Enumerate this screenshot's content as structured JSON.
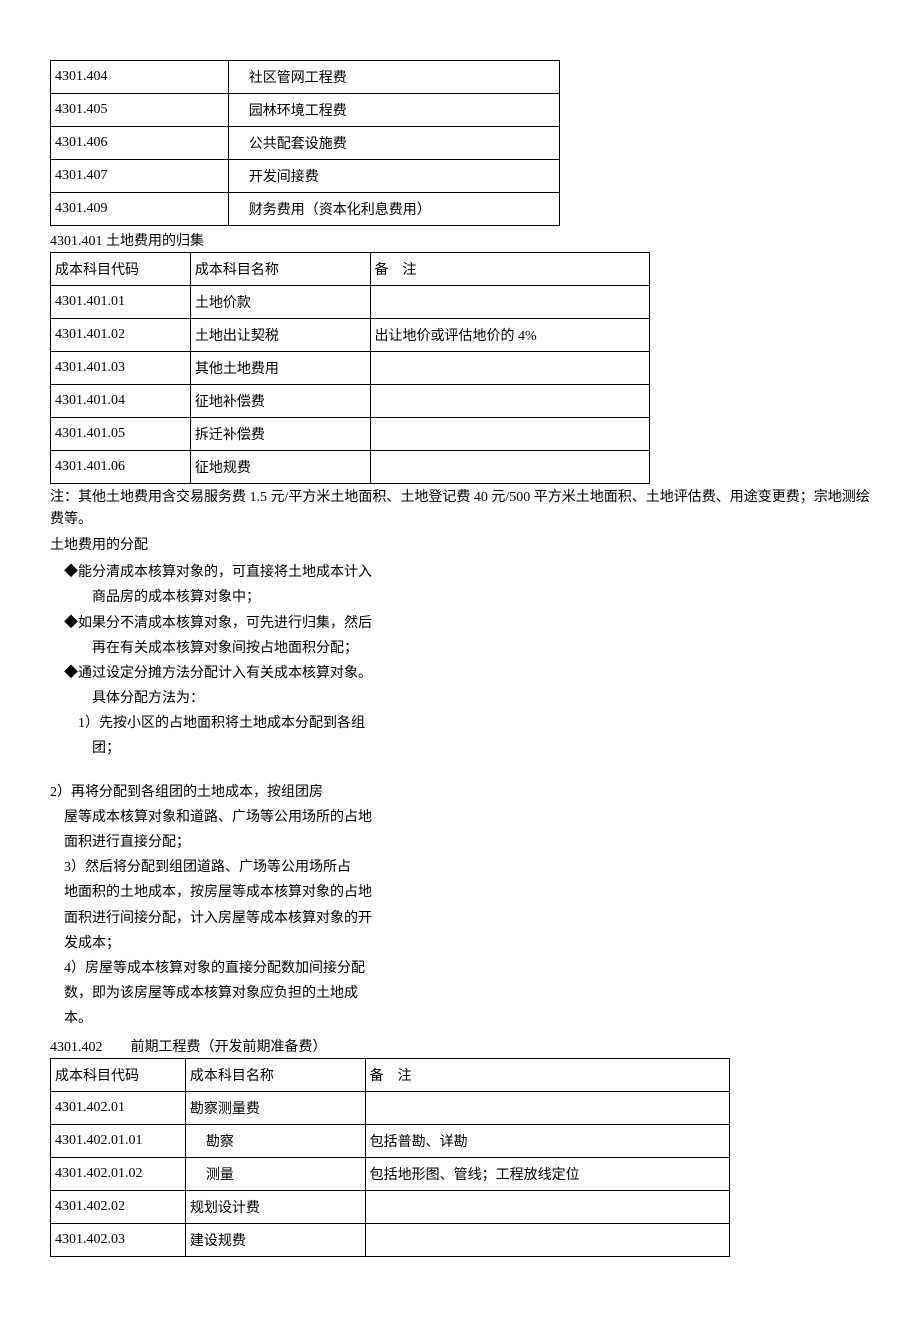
{
  "table1": {
    "rows": [
      {
        "code": "4301.404",
        "name": "社区管网工程费"
      },
      {
        "code": "4301.405",
        "name": "园林环境工程费"
      },
      {
        "code": "4301.406",
        "name": "公共配套设施费"
      },
      {
        "code": "4301.407",
        "name": "开发间接费"
      },
      {
        "code": "4301.409",
        "name": "财务费用（资本化利息费用）"
      }
    ]
  },
  "section1_title": "4301.401 土地费用的归集",
  "table2": {
    "headers": {
      "c1": "成本科目代码",
      "c2": "成本科目名称",
      "c3": "备　注"
    },
    "rows": [
      {
        "code": "4301.401.01",
        "name": "土地价款",
        "note": ""
      },
      {
        "code": "4301.401.02",
        "name": "土地出让契税",
        "note": "出让地价或评估地价的 4%"
      },
      {
        "code": "4301.401.03",
        "name": "其他土地费用",
        "note": ""
      },
      {
        "code": "4301.401.04",
        "name": "征地补偿费",
        "note": ""
      },
      {
        "code": "4301.401.05",
        "name": "拆迁补偿费",
        "note": ""
      },
      {
        "code": "4301.401.06",
        "name": "征地规费",
        "note": ""
      }
    ]
  },
  "note_after_t2": "注：其他土地费用含交易服务费 1.5 元/平方米土地面积、土地登记费 40 元/500 平方米土地面积、土地评估费、用途变更费；宗地测绘费等。",
  "alloc_title": "土地费用的分配",
  "bullets": {
    "b1": "◆能分清成本核算对象的，可直接将土地成本计入",
    "b1s": "商品房的成本核算对象中；",
    "b2": "◆如果分不清成本核算对象，可先进行归集，然后",
    "b2s": "再在有关成本核算对象间按占地面积分配；",
    "b3": "◆通过设定分摊方法分配计入有关成本核算对象。",
    "b3s": "具体分配方法为：",
    "n1": "1）先按小区的占地面积将土地成本分配到各组",
    "n1s": "团；"
  },
  "block2": {
    "l1": "2）再将分配到各组团的土地成本，按组团房",
    "l1a": "屋等成本核算对象和道路、广场等公用场所的占地",
    "l1b": "面积进行直接分配；",
    "l2": "3）然后将分配到组团道路、广场等公用场所占",
    "l2a": "地面积的土地成本，按房屋等成本核算对象的占地",
    "l2b": "面积进行间接分配，计入房屋等成本核算对象的开",
    "l2c": "发成本；",
    "l3": "4）房屋等成本核算对象的直接分配数加间接分配",
    "l3a": "数，即为该房屋等成本核算对象应负担的土地成",
    "l3b": "本。"
  },
  "section2_title": "4301.402　　前期工程费（开发前期准备费）",
  "table3": {
    "headers": {
      "c1": "成本科目代码",
      "c2": "成本科目名称",
      "c3": "备　注"
    },
    "rows": [
      {
        "code": "4301.402.01",
        "name": "勘察测量费",
        "note": "",
        "indent": false
      },
      {
        "code": "4301.402.01.01",
        "name": "勘察",
        "note": "包括普勘、详勘",
        "indent": true
      },
      {
        "code": "4301.402.01.02",
        "name": "测量",
        "note": "包括地形图、管线；工程放线定位",
        "indent": true
      },
      {
        "code": "4301.402.02",
        "name": "规划设计费",
        "note": "",
        "indent": false
      },
      {
        "code": "4301.402.03",
        "name": "建设规费",
        "note": "",
        "indent": false
      }
    ]
  }
}
